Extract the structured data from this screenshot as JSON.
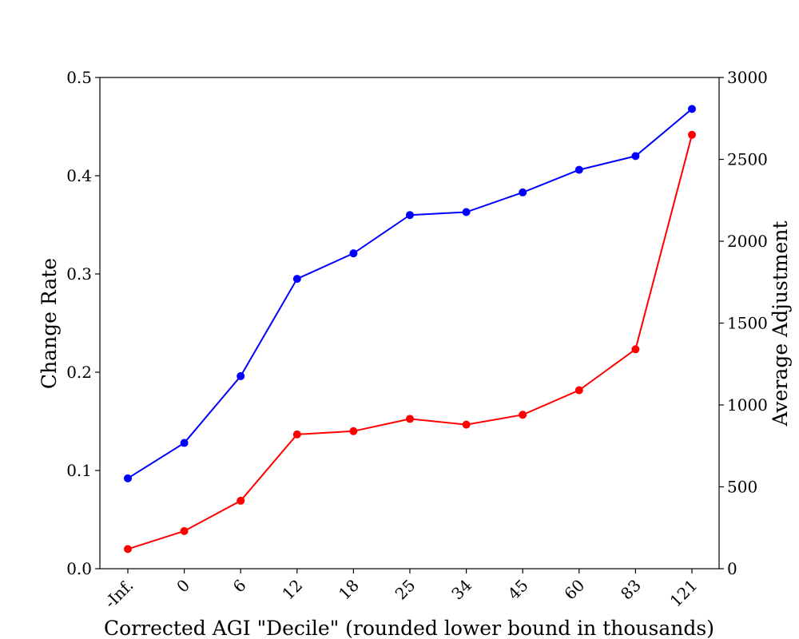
{
  "chart_data": {
    "type": "line",
    "title": "",
    "xlabel": "Corrected AGI \"Decile\" (rounded lower bound in thousands)",
    "categories": [
      "-Inf.",
      "0",
      "6",
      "12",
      "18",
      "25",
      "34",
      "45",
      "60",
      "83",
      "121"
    ],
    "y_left": {
      "label": "Change Rate",
      "label_color": "#0000ff",
      "ylim": [
        0.0,
        0.5
      ],
      "ticks": [
        "0.0",
        "0.1",
        "0.2",
        "0.3",
        "0.4",
        "0.5"
      ]
    },
    "y_right": {
      "label": "Average Adjustment",
      "label_color": "#ff0000",
      "ylim": [
        0,
        3000
      ],
      "ticks": [
        "0",
        "500",
        "1000",
        "1500",
        "2000",
        "2500",
        "3000"
      ]
    },
    "series": [
      {
        "axis": "left",
        "color": "#0000ff",
        "values": [
          0.092,
          0.128,
          0.196,
          0.295,
          0.321,
          0.36,
          0.363,
          0.383,
          0.406,
          0.42,
          0.468
        ]
      },
      {
        "axis": "right",
        "color": "#ff0000",
        "values": [
          120,
          230,
          415,
          820,
          840,
          915,
          880,
          940,
          1090,
          1340,
          2650
        ]
      }
    ],
    "grid": false,
    "legend": "none"
  }
}
